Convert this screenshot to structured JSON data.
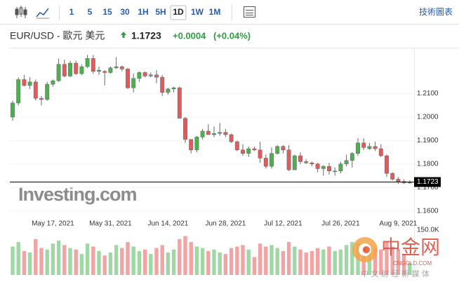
{
  "toolbar": {
    "intervals": [
      {
        "label": "1"
      },
      {
        "label": "5"
      },
      {
        "label": "15"
      },
      {
        "label": "30"
      },
      {
        "label": "1H"
      },
      {
        "label": "5H"
      },
      {
        "label": "1D",
        "active": true
      },
      {
        "label": "1W"
      },
      {
        "label": "1M"
      }
    ],
    "chart_link": "技術圖表"
  },
  "header": {
    "title": "EUR/USD - 歐元 美元",
    "price": 1.1723,
    "change": "+0.0004",
    "change_pct": "(+0.04%)"
  },
  "watermarks": {
    "investing": "Investing.com",
    "logo": "中金网",
    "logo_url": "CNGOLD.COM",
    "logo_tagline": "中 文 财 经 新 媒 体"
  },
  "chart_data": {
    "type": "candlestick",
    "categories": [
      null,
      null,
      null,
      null,
      null,
      null,
      null,
      "May 17, 2021",
      null,
      null,
      null,
      null,
      null,
      null,
      null,
      null,
      null,
      "May 31, 2021",
      null,
      null,
      null,
      null,
      null,
      null,
      null,
      null,
      null,
      "Jun 14, 2021",
      null,
      null,
      null,
      null,
      null,
      null,
      null,
      null,
      null,
      "Jun 28, 2021",
      null,
      null,
      null,
      null,
      null,
      null,
      null,
      null,
      null,
      "Jul 12, 2021",
      null,
      null,
      null,
      null,
      null,
      null,
      null,
      null,
      null,
      "Jul 26, 2021",
      null,
      null,
      null,
      null,
      null,
      null,
      null,
      null,
      null,
      "Aug 9, 2021",
      null,
      null
    ],
    "open": [
      1.2,
      1.206,
      1.216,
      1.2135,
      1.215,
      1.208,
      1.2075,
      1.214,
      1.2155,
      1.2225,
      1.2175,
      1.223,
      1.2185,
      1.2215,
      1.225,
      1.2195,
      1.2195,
      1.219,
      1.221,
      1.2215,
      1.2205,
      1.2125,
      1.2165,
      1.219,
      1.2175,
      1.218,
      1.217,
      1.2105,
      1.212,
      1.2125,
      1.1995,
      1.1905,
      1.186,
      1.1915,
      1.194,
      1.1925,
      1.193,
      1.1935,
      1.1925,
      1.1895,
      1.186,
      1.1845,
      1.1865,
      1.186,
      1.1825,
      1.179,
      1.1845,
      1.1875,
      1.186,
      1.1775,
      1.1835,
      1.181,
      1.1805,
      1.18,
      1.178,
      1.179,
      1.177,
      1.177,
      1.18,
      1.1815,
      1.1845,
      1.189,
      1.1865,
      1.1875,
      1.1865,
      1.1835,
      1.176,
      1.1735,
      1.1725,
      1.1719
    ],
    "high": [
      1.207,
      1.217,
      1.218,
      1.217,
      1.216,
      1.209,
      1.215,
      1.216,
      1.225,
      1.2245,
      1.224,
      1.224,
      1.2225,
      1.2265,
      1.2265,
      1.2215,
      1.22,
      1.2215,
      1.2255,
      1.222,
      1.221,
      1.2185,
      1.2195,
      1.2195,
      1.219,
      1.22,
      1.218,
      1.2125,
      1.213,
      1.213,
      1.2,
      1.1905,
      1.192,
      1.195,
      1.197,
      1.196,
      1.1975,
      1.195,
      1.193,
      1.19,
      1.1885,
      1.1875,
      1.1875,
      1.1895,
      1.184,
      1.187,
      1.188,
      1.188,
      1.188,
      1.184,
      1.185,
      1.182,
      1.181,
      1.1805,
      1.1795,
      1.1805,
      1.1785,
      1.181,
      1.184,
      1.185,
      1.191,
      1.191,
      1.189,
      1.1895,
      1.1885,
      1.184,
      1.1765,
      1.1745,
      1.1735,
      1.173
    ],
    "low": [
      1.1985,
      1.205,
      1.213,
      1.212,
      1.207,
      1.205,
      1.207,
      1.213,
      1.215,
      1.217,
      1.217,
      1.218,
      1.218,
      1.221,
      1.2185,
      1.218,
      1.2135,
      1.2185,
      1.2205,
      1.2195,
      1.212,
      1.2105,
      1.215,
      1.217,
      1.217,
      1.2145,
      1.209,
      1.2095,
      1.2105,
      1.1995,
      1.189,
      1.1845,
      1.185,
      1.1905,
      1.1925,
      1.1915,
      1.192,
      1.1915,
      1.189,
      1.1855,
      1.1835,
      1.183,
      1.1855,
      1.1805,
      1.178,
      1.178,
      1.184,
      1.1845,
      1.177,
      1.1775,
      1.18,
      1.18,
      1.179,
      1.1765,
      1.175,
      1.1755,
      1.175,
      1.176,
      1.179,
      1.1785,
      1.1835,
      1.186,
      1.186,
      1.1855,
      1.183,
      1.1745,
      1.173,
      1.1715,
      1.1715,
      1.1715
    ],
    "close": [
      1.206,
      1.216,
      1.2135,
      1.215,
      1.208,
      1.2075,
      1.214,
      1.2155,
      1.2225,
      1.2175,
      1.223,
      1.2185,
      1.2215,
      1.225,
      1.2195,
      1.22,
      1.219,
      1.221,
      1.2215,
      1.2205,
      1.2125,
      1.2165,
      1.219,
      1.2175,
      1.218,
      1.217,
      1.2105,
      1.212,
      1.2125,
      1.1995,
      1.1905,
      1.186,
      1.1915,
      1.194,
      1.1925,
      1.193,
      1.1935,
      1.1925,
      1.1895,
      1.186,
      1.1845,
      1.1865,
      1.186,
      1.1825,
      1.179,
      1.1845,
      1.1875,
      1.186,
      1.1775,
      1.1835,
      1.181,
      1.1805,
      1.18,
      1.178,
      1.179,
      1.177,
      1.177,
      1.18,
      1.1815,
      1.1845,
      1.189,
      1.187,
      1.1875,
      1.1865,
      1.1835,
      1.176,
      1.1735,
      1.1725,
      1.1719,
      1.1723
    ],
    "volume": [
      95000,
      110000,
      80000,
      75000,
      120000,
      90000,
      85000,
      105000,
      115000,
      100000,
      90000,
      85000,
      70000,
      105000,
      95000,
      80000,
      65000,
      75000,
      100000,
      90000,
      110000,
      95000,
      80000,
      85000,
      70000,
      90000,
      100000,
      75000,
      85000,
      120000,
      130000,
      110000,
      95000,
      90000,
      80000,
      85000,
      75000,
      70000,
      90000,
      95000,
      100000,
      85000,
      60000,
      105000,
      95000,
      100000,
      90000,
      80000,
      110000,
      95000,
      85000,
      75000,
      80000,
      90000,
      85000,
      95000,
      80000,
      85000,
      100000,
      110000,
      105000,
      95000,
      80000,
      90000,
      85000,
      110000,
      95000,
      85000,
      70000,
      40000
    ],
    "up_color": "#4caf50",
    "down_color": "#e05c5c",
    "volume_up_color": "#9fd8a5",
    "volume_down_color": "#f2a3a3",
    "ylim": [
      1.1566,
      1.2275
    ],
    "yticks": [
      {
        "value": 1.16,
        "label": "1.1600"
      },
      {
        "value": 1.17,
        "label": "1.1700"
      },
      {
        "value": 1.18,
        "label": "1.1800"
      },
      {
        "value": 1.19,
        "label": "1.1900"
      },
      {
        "value": 1.2,
        "label": "1.2000"
      },
      {
        "value": 1.21,
        "label": "1.2100"
      }
    ],
    "volume_ylim": [
      0,
      150000
    ],
    "volume_yticks": [
      {
        "value": 150000,
        "label": "150.0K"
      }
    ],
    "last_price_color": "#000000",
    "grid": true
  }
}
